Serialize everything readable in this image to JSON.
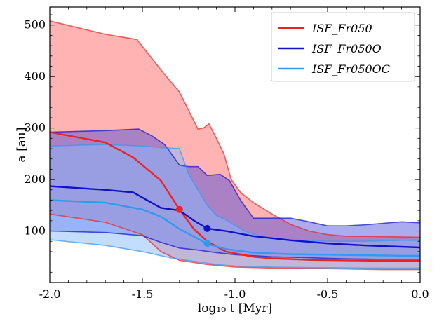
{
  "chart_data": {
    "type": "area",
    "title": "",
    "xlabel": "log₁₀ t [Myr]",
    "ylabel": "a [au]",
    "xlim": [
      -2.0,
      0.0
    ],
    "ylim": [
      0,
      535
    ],
    "xticks": [
      -2.0,
      -1.5,
      -1.0,
      -0.5,
      0.0
    ],
    "xtick_labels": [
      "-2.0",
      "-1.5",
      "-1.0",
      "-0.5",
      "0.0"
    ],
    "yticks": [
      100,
      200,
      300,
      400,
      500
    ],
    "ytick_labels": [
      "100",
      "200",
      "300",
      "400",
      "500"
    ],
    "legend_position": "top-right",
    "series": [
      {
        "name": "𝓘𝒮𝓕_Fr050",
        "legend_label": "ISF_Fr050",
        "color": "#ee2222",
        "fill_color": "#ff8080",
        "fill_opacity": 0.6,
        "median": [
          [
            -2.0,
            292
          ],
          [
            -1.7,
            272
          ],
          [
            -1.55,
            243
          ],
          [
            -1.4,
            198
          ],
          [
            -1.3,
            142
          ],
          [
            -1.22,
            103
          ],
          [
            -1.15,
            80
          ],
          [
            -1.05,
            60
          ],
          [
            -0.9,
            50
          ],
          [
            -0.8,
            47
          ],
          [
            -0.6,
            44
          ],
          [
            -0.4,
            43
          ],
          [
            -0.2,
            42
          ],
          [
            0.0,
            42
          ]
        ],
        "upper": [
          [
            -2.0,
            508
          ],
          [
            -1.85,
            495
          ],
          [
            -1.7,
            482
          ],
          [
            -1.53,
            472
          ],
          [
            -1.4,
            413
          ],
          [
            -1.3,
            370
          ],
          [
            -1.2,
            298
          ],
          [
            -1.17,
            300
          ],
          [
            -1.14,
            308
          ],
          [
            -1.1,
            280
          ],
          [
            -1.06,
            250
          ],
          [
            -1.02,
            200
          ],
          [
            -0.97,
            175
          ],
          [
            -0.9,
            155
          ],
          [
            -0.8,
            133
          ],
          [
            -0.7,
            113
          ],
          [
            -0.6,
            100
          ],
          [
            -0.5,
            93
          ],
          [
            -0.4,
            90
          ],
          [
            -0.2,
            89
          ],
          [
            0.0,
            88
          ]
        ],
        "lower": [
          [
            -2.0,
            133
          ],
          [
            -1.7,
            117
          ],
          [
            -1.5,
            93
          ],
          [
            -1.4,
            60
          ],
          [
            -1.3,
            43
          ],
          [
            -1.15,
            35
          ],
          [
            -1.0,
            30
          ],
          [
            -0.8,
            28
          ],
          [
            -0.5,
            27
          ],
          [
            -0.2,
            25
          ],
          [
            0.0,
            25
          ]
        ],
        "marker": [
          -1.3,
          142
        ]
      },
      {
        "name": "𝓘𝒮𝓕_Fr050O",
        "legend_label": "ISF_Fr050O",
        "color": "#1111cc",
        "fill_color": "#4444dd",
        "fill_opacity": 0.45,
        "median": [
          [
            -2.0,
            187
          ],
          [
            -1.7,
            180
          ],
          [
            -1.55,
            175
          ],
          [
            -1.4,
            145
          ],
          [
            -1.3,
            140
          ],
          [
            -1.22,
            120
          ],
          [
            -1.15,
            105
          ],
          [
            -1.05,
            100
          ],
          [
            -0.9,
            90
          ],
          [
            -0.7,
            82
          ],
          [
            -0.5,
            76
          ],
          [
            -0.3,
            72
          ],
          [
            -0.15,
            70
          ],
          [
            0.0,
            68
          ]
        ],
        "upper": [
          [
            -2.0,
            292
          ],
          [
            -1.7,
            295
          ],
          [
            -1.52,
            298
          ],
          [
            -1.45,
            285
          ],
          [
            -1.38,
            268
          ],
          [
            -1.3,
            228
          ],
          [
            -1.25,
            225
          ],
          [
            -1.2,
            225
          ],
          [
            -1.15,
            208
          ],
          [
            -1.08,
            210
          ],
          [
            -1.03,
            198
          ],
          [
            -0.97,
            160
          ],
          [
            -0.9,
            125
          ],
          [
            -0.8,
            125
          ],
          [
            -0.7,
            125
          ],
          [
            -0.6,
            118
          ],
          [
            -0.5,
            110
          ],
          [
            -0.4,
            110
          ],
          [
            -0.3,
            112
          ],
          [
            -0.2,
            115
          ],
          [
            -0.1,
            118
          ],
          [
            0.0,
            116
          ]
        ],
        "lower": [
          [
            -2.0,
            100
          ],
          [
            -1.7,
            97
          ],
          [
            -1.5,
            91
          ],
          [
            -1.4,
            78
          ],
          [
            -1.3,
            67
          ],
          [
            -1.2,
            63
          ],
          [
            -1.1,
            58
          ],
          [
            -1.0,
            54
          ],
          [
            -0.8,
            50
          ],
          [
            -0.6,
            48
          ],
          [
            -0.4,
            46
          ],
          [
            -0.2,
            45
          ],
          [
            0.0,
            45
          ]
        ],
        "marker": [
          -1.15,
          105
        ]
      },
      {
        "name": "𝓘𝒮𝓕_Fr050OC",
        "legend_label": "ISF_Fr050OC",
        "color": "#3399ee",
        "fill_color": "#88bbff",
        "fill_opacity": 0.5,
        "median": [
          [
            -2.0,
            160
          ],
          [
            -1.7,
            155
          ],
          [
            -1.5,
            142
          ],
          [
            -1.4,
            128
          ],
          [
            -1.3,
            104
          ],
          [
            -1.2,
            85
          ],
          [
            -1.15,
            75
          ],
          [
            -1.05,
            65
          ],
          [
            -0.9,
            58
          ],
          [
            -0.7,
            55
          ],
          [
            -0.5,
            54
          ],
          [
            -0.3,
            53
          ],
          [
            -0.1,
            52
          ],
          [
            0.0,
            52
          ]
        ],
        "upper": [
          [
            -2.0,
            265
          ],
          [
            -1.7,
            268
          ],
          [
            -1.5,
            265
          ],
          [
            -1.4,
            262
          ],
          [
            -1.3,
            260
          ],
          [
            -1.25,
            210
          ],
          [
            -1.2,
            180
          ],
          [
            -1.15,
            150
          ],
          [
            -1.1,
            130
          ],
          [
            -1.05,
            122
          ],
          [
            -0.95,
            100
          ],
          [
            -0.85,
            88
          ],
          [
            -0.7,
            83
          ],
          [
            -0.5,
            80
          ],
          [
            -0.3,
            80
          ],
          [
            -0.1,
            82
          ],
          [
            0.0,
            82
          ]
        ],
        "lower": [
          [
            -2.0,
            83
          ],
          [
            -1.7,
            72
          ],
          [
            -1.5,
            60
          ],
          [
            -1.35,
            48
          ],
          [
            -1.2,
            40
          ],
          [
            -1.1,
            35
          ],
          [
            -1.0,
            32
          ],
          [
            -0.8,
            30
          ],
          [
            -0.6,
            29
          ],
          [
            -0.3,
            28
          ],
          [
            0.0,
            28
          ]
        ],
        "marker": [
          -1.15,
          76
        ]
      }
    ]
  }
}
